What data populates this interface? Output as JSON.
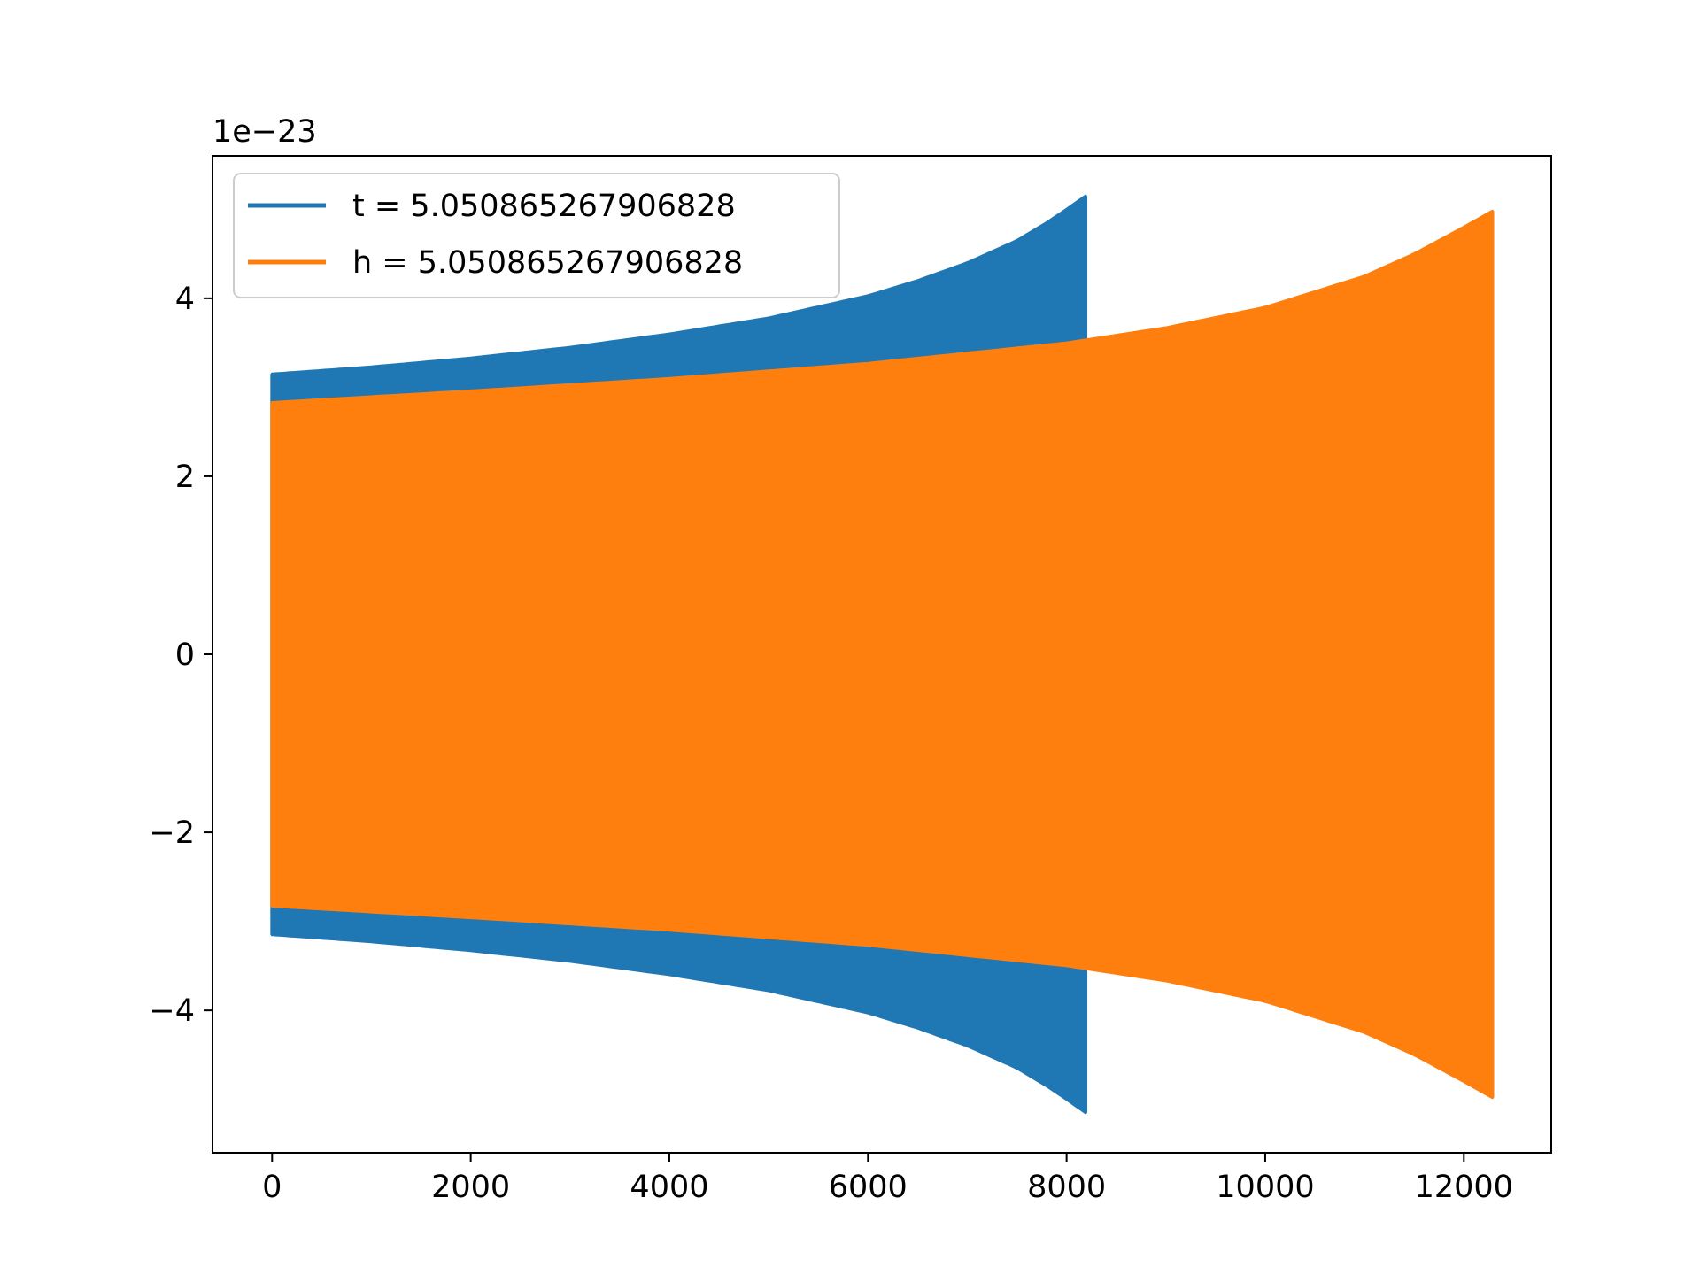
{
  "chart_data": {
    "type": "line",
    "title": "",
    "xlabel": "",
    "ylabel": "",
    "y_offset_text": "1e−23",
    "xlim": [
      -600,
      12880
    ],
    "ylim": [
      -5.6,
      5.6
    ],
    "xticks": [
      0,
      2000,
      4000,
      6000,
      8000,
      10000,
      12000
    ],
    "xtick_labels": [
      "0",
      "2000",
      "4000",
      "6000",
      "8000",
      "10000",
      "12000"
    ],
    "yticks": [
      -4,
      -2,
      0,
      2,
      4
    ],
    "ytick_labels": [
      "−4",
      "−2",
      "0",
      "2",
      "4"
    ],
    "grid": false,
    "legend_position": "upper-left",
    "series": [
      {
        "name": "t = 5.050865267906828",
        "color": "#1f77b4",
        "x_start": 0,
        "x_end": 8191,
        "envelope": {
          "x": [
            0,
            1000,
            2000,
            3000,
            4000,
            5000,
            6000,
            6500,
            7000,
            7500,
            7800,
            8000,
            8191
          ],
          "upper": [
            3.15,
            3.23,
            3.33,
            3.45,
            3.6,
            3.78,
            4.03,
            4.2,
            4.4,
            4.65,
            4.85,
            5.0,
            5.15
          ],
          "lower": [
            -3.15,
            -3.23,
            -3.33,
            -3.45,
            -3.6,
            -3.78,
            -4.03,
            -4.2,
            -4.4,
            -4.65,
            -4.85,
            -5.0,
            -5.15
          ]
        }
      },
      {
        "name": "h = 5.050865267906828",
        "color": "#ff7f0e",
        "x_start": 0,
        "x_end": 12287,
        "envelope": {
          "x": [
            0,
            2000,
            4000,
            6000,
            8000,
            9000,
            10000,
            11000,
            11500,
            12000,
            12287
          ],
          "upper": [
            2.83,
            2.96,
            3.1,
            3.27,
            3.5,
            3.67,
            3.9,
            4.25,
            4.5,
            4.8,
            4.98
          ],
          "lower": [
            -2.83,
            -2.96,
            -3.1,
            -3.27,
            -3.5,
            -3.67,
            -3.9,
            -4.25,
            -4.5,
            -4.8,
            -4.98
          ]
        }
      }
    ]
  }
}
